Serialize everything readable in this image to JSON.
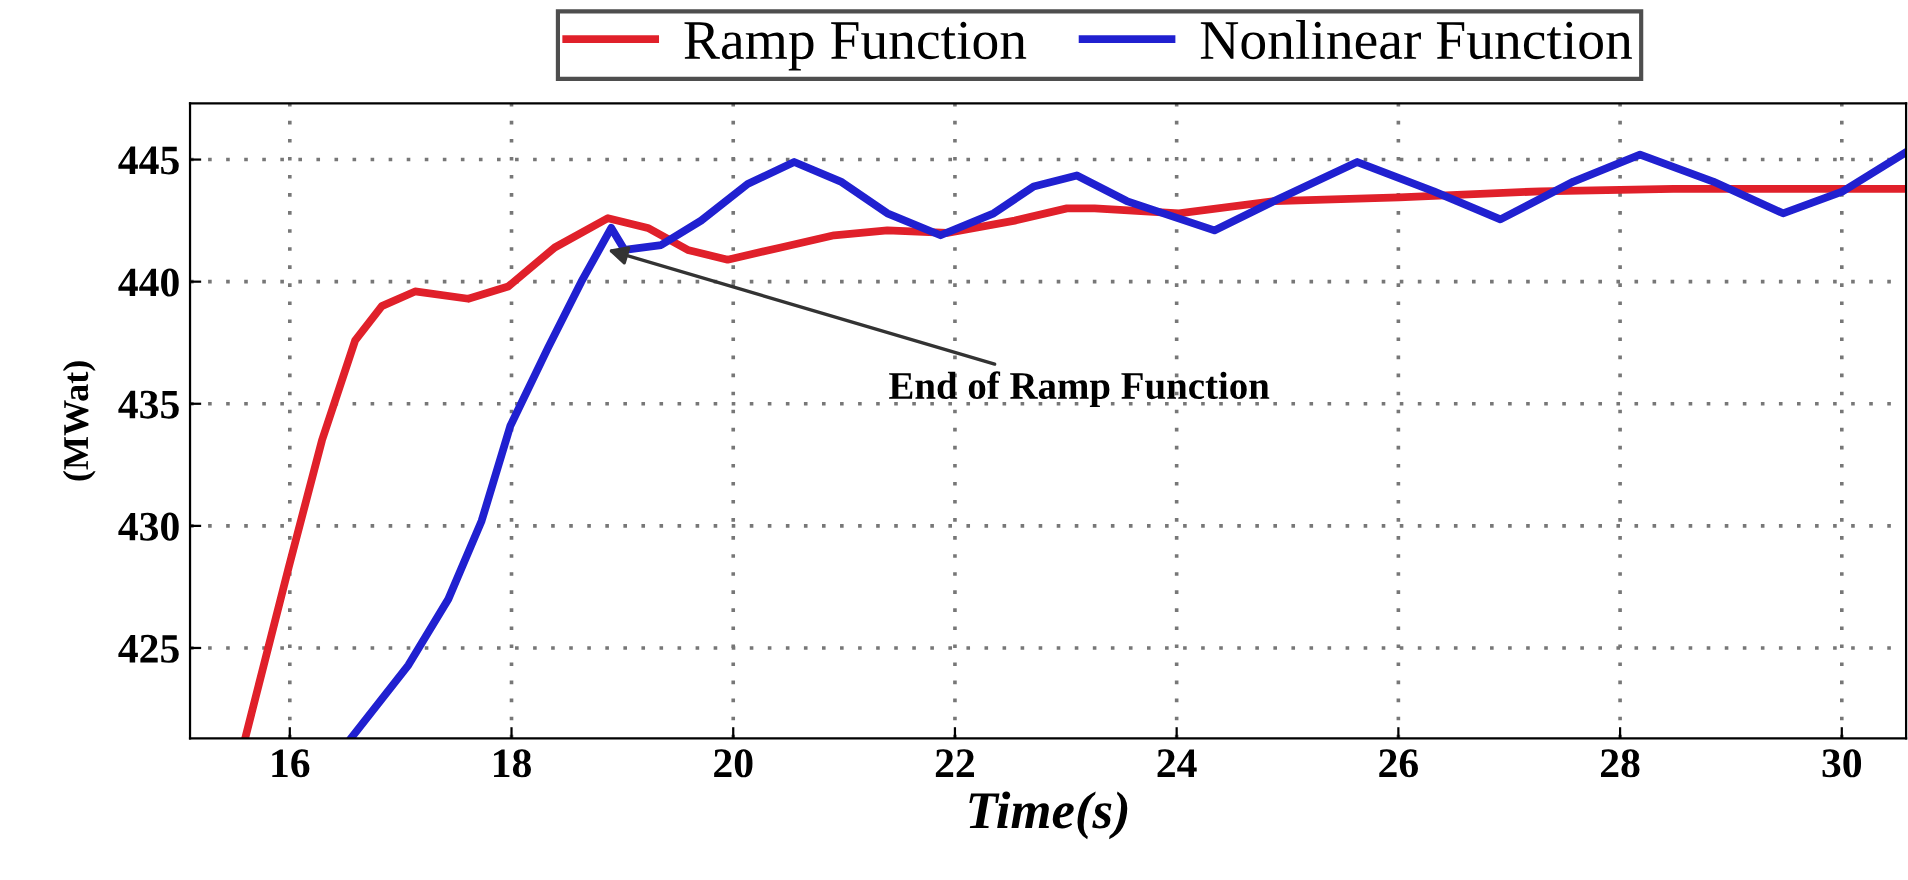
{
  "chart_data": {
    "type": "line",
    "xlabel": "Time(s)",
    "ylabel": "(MWat)",
    "series": [
      {
        "name": "Ramp Function",
        "color": "#e0202a",
        "x": [
          15.6,
          15.99,
          16.29,
          16.59,
          16.83,
          17.13,
          17.61,
          17.97,
          18.39,
          18.87,
          19.23,
          19.59,
          19.95,
          20.43,
          20.91,
          21.39,
          21.93,
          22.54,
          23.01,
          23.26,
          24.02,
          24.88,
          26.01,
          27.28,
          28.48,
          30.01,
          30.58
        ],
        "values": [
          421.35,
          428.3,
          433.5,
          437.6,
          439.0,
          439.6,
          439.3,
          439.8,
          441.4,
          442.6,
          442.2,
          441.3,
          440.9,
          441.4,
          441.9,
          442.1,
          442.0,
          442.5,
          443.0,
          443.0,
          442.8,
          443.3,
          443.45,
          443.7,
          443.8,
          443.8,
          443.8
        ]
      },
      {
        "name": "Nonlinear Function",
        "color": "#2020d0",
        "x": [
          16.56,
          17.07,
          17.43,
          17.73,
          17.99,
          18.33,
          18.63,
          18.9,
          19.02,
          19.35,
          19.71,
          20.13,
          20.55,
          20.97,
          21.39,
          21.87,
          22.35,
          22.71,
          23.1,
          23.55,
          24.34,
          24.88,
          25.63,
          26.32,
          26.92,
          27.58,
          28.18,
          28.84,
          29.47,
          30.01,
          30.58
        ],
        "values": [
          421.35,
          424.3,
          427.0,
          430.2,
          434.1,
          437.3,
          440.0,
          442.2,
          441.3,
          441.5,
          442.5,
          444.0,
          444.9,
          444.1,
          442.8,
          441.9,
          442.8,
          443.9,
          444.35,
          443.3,
          442.1,
          443.3,
          444.9,
          443.7,
          442.55,
          444.1,
          445.2,
          444.1,
          442.8,
          443.7,
          445.3
        ]
      }
    ],
    "annotations": [
      {
        "text": "End of Ramp Function",
        "x": 18.87,
        "y": 441.3
      }
    ],
    "xlim": [
      15.1,
      30.58
    ],
    "ylim": [
      421.3,
      447.3
    ],
    "xticks": [
      16,
      18,
      20,
      22,
      24,
      26,
      28,
      30
    ],
    "yticks": [
      425,
      430,
      435,
      440,
      445
    ],
    "grid": true,
    "legend": "top",
    "marker": "none",
    "line_style": "solid"
  }
}
